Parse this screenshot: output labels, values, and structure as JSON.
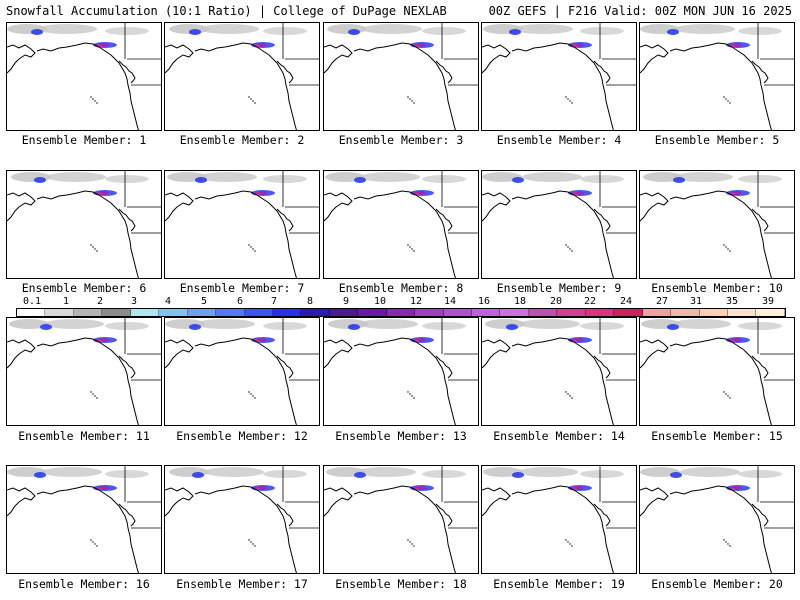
{
  "header": {
    "left_title": "Snowfall Accumulation (10:1 Ratio) | College of DuPage NEXLAB",
    "right_title": "00Z GEFS | F216 Valid: 00Z MON JUN 16 2025"
  },
  "panels": [
    {
      "caption": "Ensemble Member: 1"
    },
    {
      "caption": "Ensemble Member: 2"
    },
    {
      "caption": "Ensemble Member: 3"
    },
    {
      "caption": "Ensemble Member: 4"
    },
    {
      "caption": "Ensemble Member: 5"
    },
    {
      "caption": "Ensemble Member: 6"
    },
    {
      "caption": "Ensemble Member: 7"
    },
    {
      "caption": "Ensemble Member: 8"
    },
    {
      "caption": "Ensemble Member: 9"
    },
    {
      "caption": "Ensemble Member: 10"
    },
    {
      "caption": "Ensemble Member: 11"
    },
    {
      "caption": "Ensemble Member: 12"
    },
    {
      "caption": "Ensemble Member: 13"
    },
    {
      "caption": "Ensemble Member: 14"
    },
    {
      "caption": "Ensemble Member: 15"
    },
    {
      "caption": "Ensemble Member: 16"
    },
    {
      "caption": "Ensemble Member: 17"
    },
    {
      "caption": "Ensemble Member: 18"
    },
    {
      "caption": "Ensemble Member: 19"
    },
    {
      "caption": "Ensemble Member: 20"
    }
  ],
  "legend": {
    "labels": [
      "0.1",
      "1",
      "2",
      "3",
      "4",
      "5",
      "6",
      "7",
      "8",
      "9",
      "10",
      "12",
      "14",
      "16",
      "18",
      "20",
      "22",
      "24",
      "27",
      "31",
      "35",
      "39"
    ],
    "colors": [
      "#ffffff",
      "#d9d9d9",
      "#b4b4b4",
      "#8c8c8c",
      "#aee6f0",
      "#7fc4f0",
      "#6fa0f0",
      "#4f7cf0",
      "#3a55f0",
      "#2a2ef0",
      "#2a1ab0",
      "#4a1a90",
      "#6a1aa0",
      "#8a28b0",
      "#a040c0",
      "#b050d0",
      "#c060e0",
      "#d070e0",
      "#c050b0",
      "#d04090",
      "#e03080",
      "#d02060",
      "#f0a0a0",
      "#f0b8a8",
      "#f8d0b8",
      "#f8e4cc",
      "#fff0dc"
    ]
  },
  "map_colors": {
    "coast": "#000000",
    "snow_light": "#c8c8c8",
    "snow_blue": "#2a3cf0",
    "snow_purple": "#9a2ab0",
    "snow_magenta": "#d03090"
  }
}
